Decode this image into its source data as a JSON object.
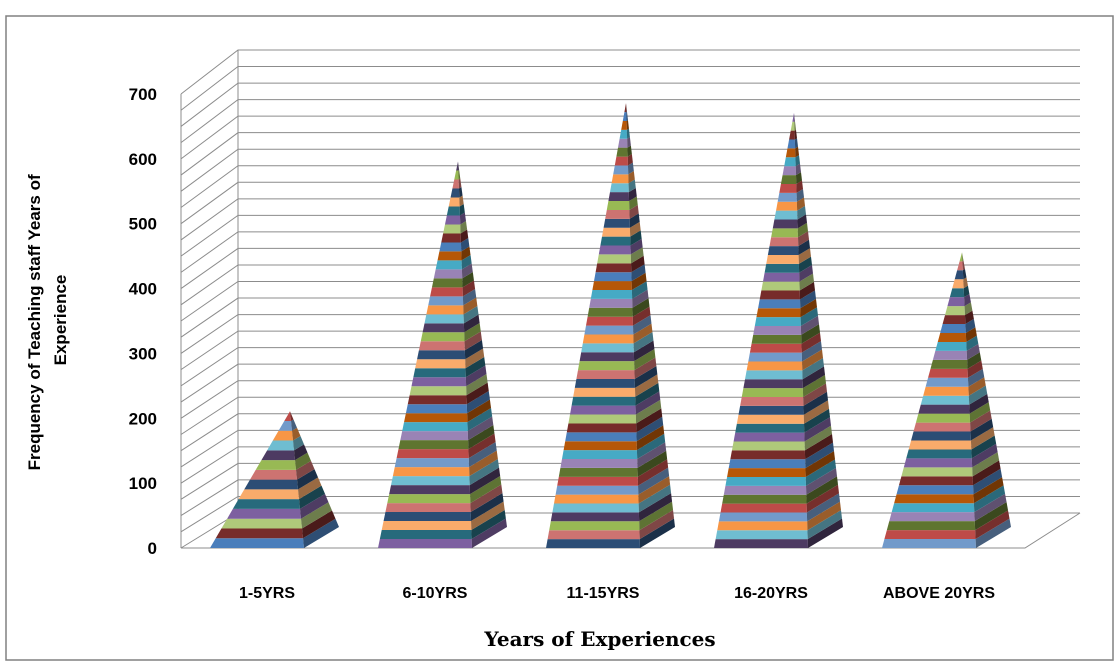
{
  "chart_data": {
    "type": "bar",
    "bar_shape": "3d-pyramid",
    "categories": [
      "1-5YRS",
      "6-10YRS",
      "11-15YRS",
      "16-20YRS",
      "ABOVE 20YRS"
    ],
    "values": [
      180,
      565,
      655,
      640,
      425
    ],
    "xlabel": "Years of Experiences",
    "ylabel_lines": [
      "Frequency  of  Teaching staff Years of",
      "Experience"
    ],
    "yticks": [
      "0",
      "100",
      "200",
      "300",
      "400",
      "500",
      "600",
      "700"
    ],
    "ylim": [
      0,
      700
    ],
    "grid": true,
    "legend": "none"
  },
  "colors": [
    "#4a7ebb",
    "#be4b48",
    "#98b954",
    "#7d60a0",
    "#46aac5",
    "#f79646",
    "#2c4d75",
    "#772c2a",
    "#5f7530",
    "#4d3b62",
    "#276a7c",
    "#b65708",
    "#729aca",
    "#cd7371",
    "#afc97a",
    "#9983b5",
    "#6fbdd1",
    "#f9ab6b"
  ]
}
